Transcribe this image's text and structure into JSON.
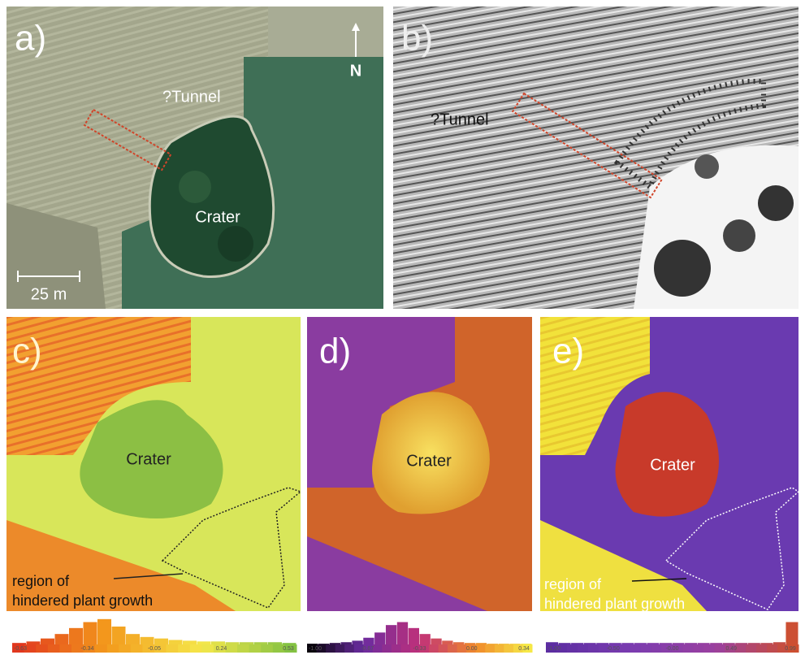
{
  "panels": [
    {
      "label": "a)",
      "tunnel": "?Tunnel",
      "north": "N",
      "scale": "25 m",
      "crater": "Crater"
    },
    {
      "label": "b)",
      "tunnel": "?Tunnel"
    },
    {
      "label": "c)",
      "crater": "Crater",
      "region": [
        "region of",
        "hindered plant growth"
      ]
    },
    {
      "label": "d)",
      "crater": "Crater"
    },
    {
      "label": "e)",
      "crater": "Crater",
      "region": [
        "region of",
        "hindered plant growth"
      ]
    }
  ],
  "histograms": [
    {
      "ticks": [
        "-0.63",
        "-0.34",
        "-0.05",
        "0.24",
        "0.53"
      ],
      "ylim": [
        0,
        36
      ],
      "bars": [
        2,
        4,
        8,
        14,
        22,
        30,
        34,
        24,
        14,
        10,
        8,
        6,
        5,
        4,
        4,
        3,
        3,
        3,
        3,
        2
      ],
      "palette": [
        "#e0301e",
        "#f39a1c",
        "#f5e74a",
        "#7cc043"
      ]
    },
    {
      "ticks": [
        "-1.00",
        "-0.67",
        "-0.33",
        "0.00",
        "0.34"
      ],
      "ylim": [
        0,
        36
      ],
      "bars": [
        1,
        1,
        2,
        3,
        5,
        9,
        16,
        26,
        30,
        22,
        14,
        8,
        5,
        3,
        2,
        2,
        1,
        1,
        1,
        1
      ],
      "palette": [
        "#000000",
        "#6a2ca0",
        "#c0307a",
        "#f08a2a",
        "#f7f04a"
      ]
    },
    {
      "ticks": [
        "-1.00",
        "-0.50",
        "-0.00",
        "0.49",
        "0.99"
      ],
      "ylim": [
        0,
        36
      ],
      "bars": [
        3,
        2,
        2,
        2,
        2,
        2,
        2,
        2,
        2,
        2,
        2,
        2,
        2,
        2,
        2,
        2,
        2,
        2,
        3,
        30
      ],
      "palette": [
        "#5a2ca0",
        "#7a3cb0",
        "#9a40a0",
        "#d0502a"
      ]
    }
  ]
}
